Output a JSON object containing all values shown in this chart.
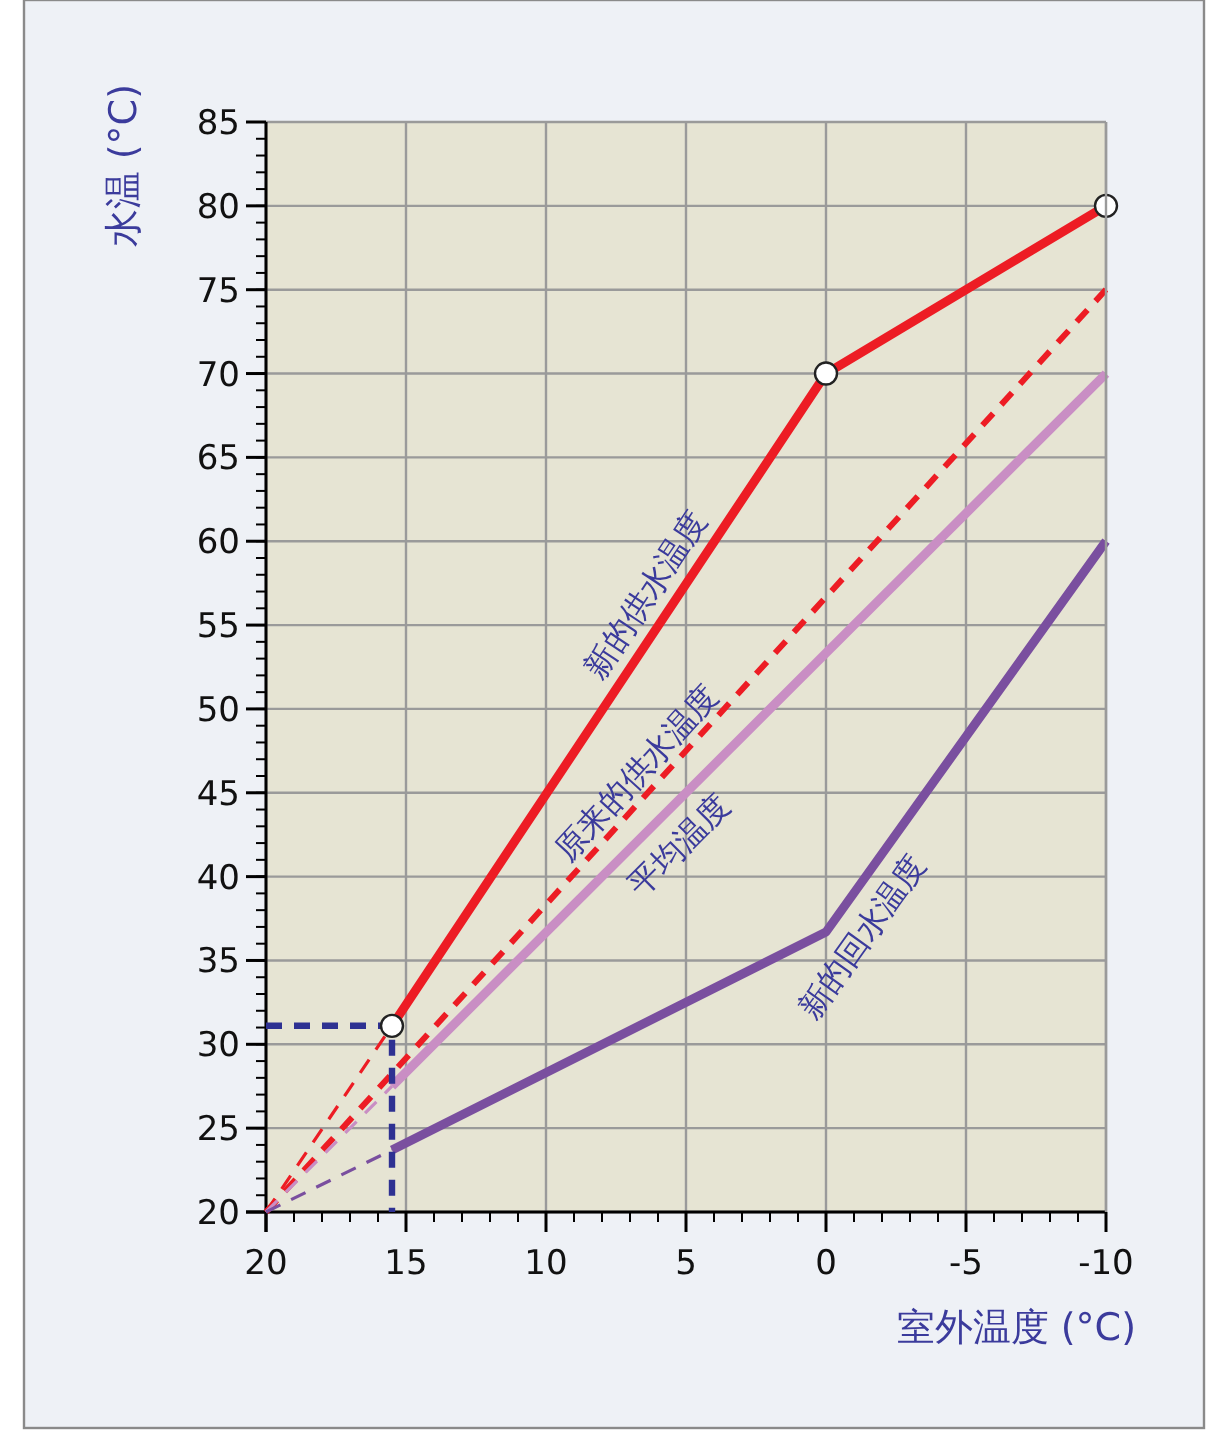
{
  "chart_data": {
    "type": "line",
    "xlabel": "室外温度 (°C)",
    "ylabel": "水温 (°C)",
    "xlim": [
      20,
      -10
    ],
    "ylim": [
      20,
      85
    ],
    "xticks": [
      20,
      15,
      10,
      5,
      0,
      -5,
      -10
    ],
    "yticks": [
      20,
      25,
      30,
      35,
      40,
      45,
      50,
      55,
      60,
      65,
      70,
      75,
      80,
      85
    ],
    "grid": true,
    "series": [
      {
        "name": "新的供水温度",
        "color": "#ed1c24",
        "x": [
          15.5,
          0,
          -10
        ],
        "values": [
          31.1,
          70,
          80
        ],
        "marker": "circle",
        "line_style": "solid"
      },
      {
        "name": "原来的供水温度",
        "color": "#ed1c24",
        "x": [
          20,
          -10
        ],
        "values": [
          20,
          75
        ],
        "line_style": "dashed"
      },
      {
        "name": "平均温度",
        "color": "#c98ec4",
        "x": [
          15.5,
          -10
        ],
        "values": [
          27.5,
          70
        ],
        "line_style": "solid"
      },
      {
        "name": "新的回水温度",
        "color": "#7a4f9f",
        "x": [
          15.5,
          0,
          -10
        ],
        "values": [
          23.7,
          36.7,
          60
        ],
        "line_style": "solid"
      },
      {
        "color": "#ed1c24",
        "x": [
          20,
          15.5
        ],
        "values": [
          20,
          31.1
        ],
        "line_style": "dashed"
      },
      {
        "color": "#c98ec4",
        "x": [
          20,
          15.5
        ],
        "values": [
          20,
          27.5
        ],
        "line_style": "dashed"
      },
      {
        "color": "#7a4f9f",
        "x": [
          20,
          15.5
        ],
        "values": [
          20,
          23.7
        ],
        "line_style": "dashed"
      },
      {
        "color": "#2e3192",
        "x": [
          20,
          15.5,
          15.5
        ],
        "values": [
          31.1,
          31.1,
          20
        ],
        "line_style": "dashed"
      }
    ]
  }
}
